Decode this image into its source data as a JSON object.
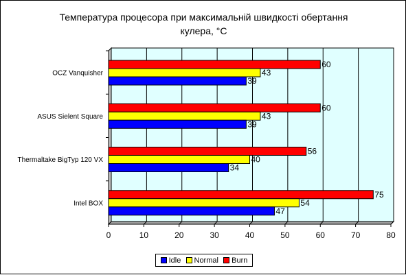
{
  "chart_data": {
    "type": "bar",
    "orientation": "horizontal",
    "title_line1": "Температура процесора при максимальній швидкості обертання",
    "title_line2": "кулера, °С",
    "categories": [
      "OCZ Vanquisher",
      "ASUS Sielent Square",
      "Thermaltake BigTyp 120 VX",
      "Intel BOX"
    ],
    "series": [
      {
        "name": "Burn",
        "color": "#ff0000",
        "values": [
          60,
          60,
          56,
          75
        ]
      },
      {
        "name": "Normal",
        "color": "#ffff00",
        "values": [
          43,
          43,
          40,
          54
        ]
      },
      {
        "name": "Idle",
        "color": "#0000ff",
        "values": [
          39,
          39,
          34,
          47
        ]
      }
    ],
    "x_ticks": [
      "0",
      "10",
      "20",
      "30",
      "40",
      "50",
      "60",
      "70",
      "80"
    ],
    "xlim": [
      0,
      80
    ],
    "grid": true,
    "legend_position": "bottom",
    "legend_order": [
      "Idle",
      "Normal",
      "Burn"
    ],
    "plot_background": "#e0ffff"
  }
}
